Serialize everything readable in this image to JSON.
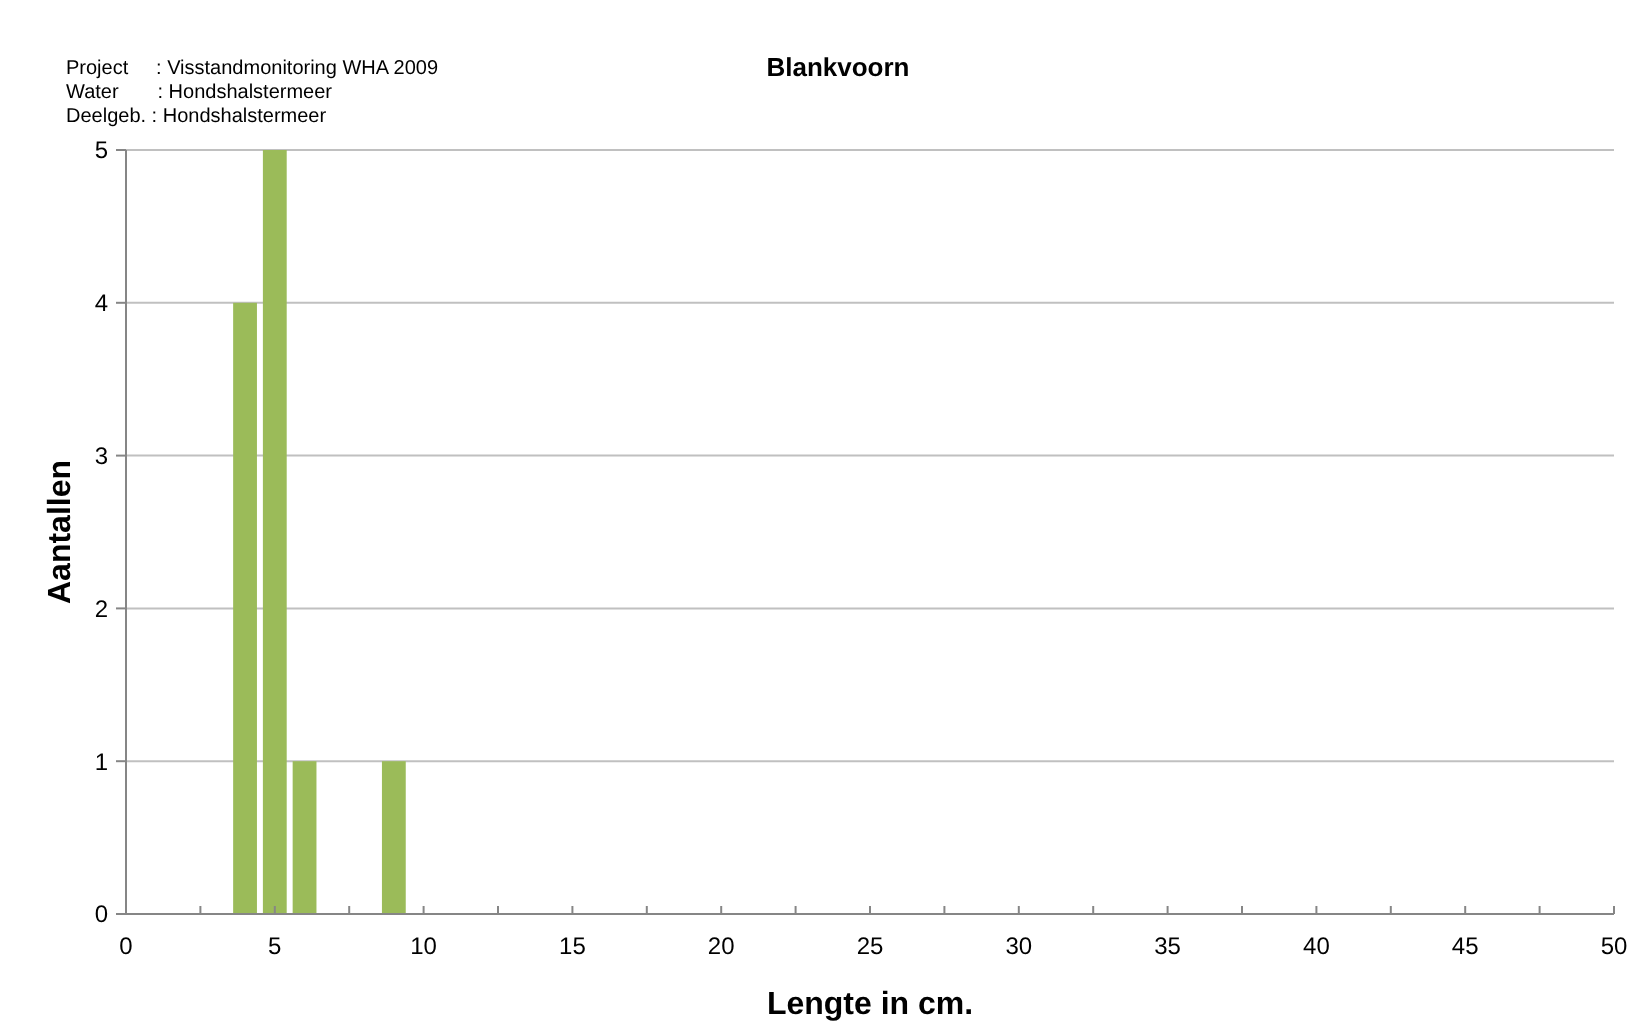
{
  "chart_data": {
    "type": "bar",
    "title": "Blankvoorn",
    "xlabel": "Lengte in cm.",
    "ylabel": "Aantallen",
    "annotations": [
      "Project     : Visstandmonitoring WHA 2009",
      "Water       : Hondshalstermeer",
      "Deelgeb. : Hondshalstermeer"
    ],
    "x": [
      4,
      5,
      6,
      9
    ],
    "values": [
      4,
      5,
      1,
      1
    ],
    "color": "#9bbb59",
    "xlim": [
      0,
      50
    ],
    "xticks": [
      0,
      {
        "value": 2.5,
        "label": null
      },
      5,
      {
        "value": 7.5,
        "label": null
      },
      10,
      {
        "value": 12.5,
        "label": null
      },
      15,
      {
        "value": 17.5,
        "label": null
      },
      20,
      {
        "value": 22.5,
        "label": null
      },
      25,
      {
        "value": 27.5,
        "label": null
      },
      30,
      {
        "value": 32.5,
        "label": null
      },
      35,
      {
        "value": 37.5,
        "label": null
      },
      40,
      {
        "value": 42.5,
        "label": null
      },
      45,
      {
        "value": 47.5,
        "label": null
      },
      50
    ],
    "ylim": [
      0,
      5
    ],
    "yticks": [
      0,
      1,
      2,
      3,
      4,
      5
    ],
    "grid": "y"
  }
}
